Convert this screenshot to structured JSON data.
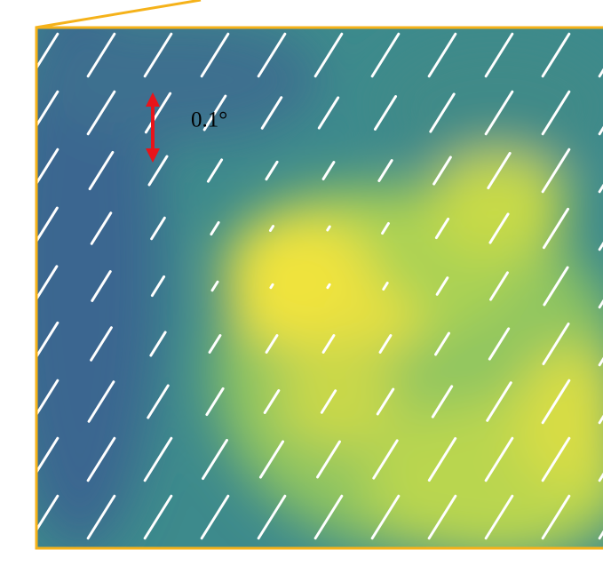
{
  "scale_label": "0.1°"
}
